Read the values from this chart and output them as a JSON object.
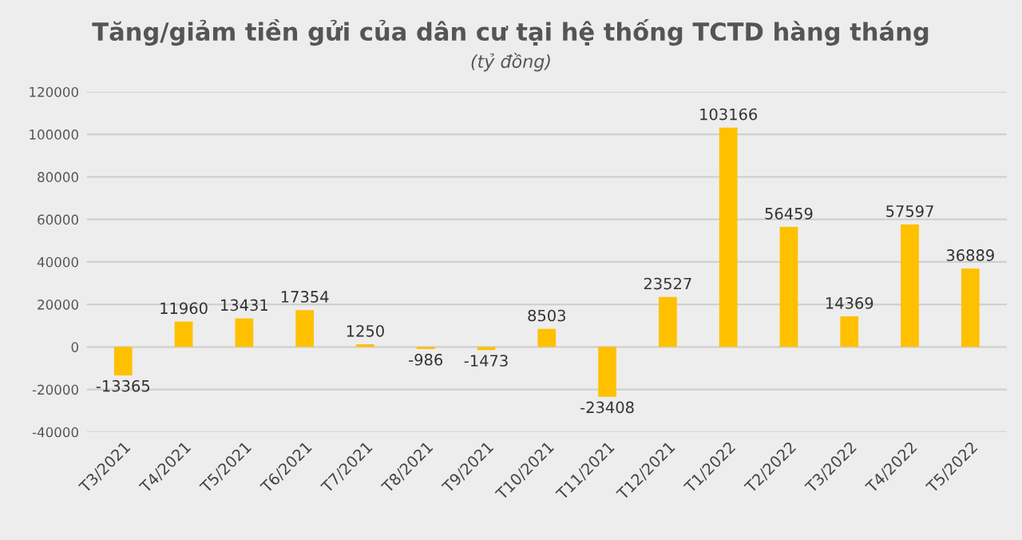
{
  "chart_data": {
    "type": "bar",
    "title": "Tăng/giảm tiền gửi của dân cư tại hệ thống TCTD hàng tháng",
    "subtitle": "(tỷ đồng)",
    "categories": [
      "T3/2021",
      "T4/2021",
      "T5/2021",
      "T6/2021",
      "T7/2021",
      "T8/2021",
      "T9/2021",
      "T10/2021",
      "T11/2021",
      "T12/2021",
      "T1/2022",
      "T2/2022",
      "T3/2022",
      "T4/2022",
      "T5/2022"
    ],
    "values": [
      -13365,
      11960,
      13431,
      17354,
      1250,
      -986,
      -1473,
      8503,
      -23408,
      23527,
      103166,
      56459,
      14369,
      57597,
      36889
    ],
    "color": "#ffc000",
    "ylim": [
      -40000,
      120000
    ],
    "yticks": [
      -40000,
      -20000,
      0,
      20000,
      40000,
      60000,
      80000,
      100000,
      120000
    ],
    "grid": "y",
    "data_labels": true
  }
}
